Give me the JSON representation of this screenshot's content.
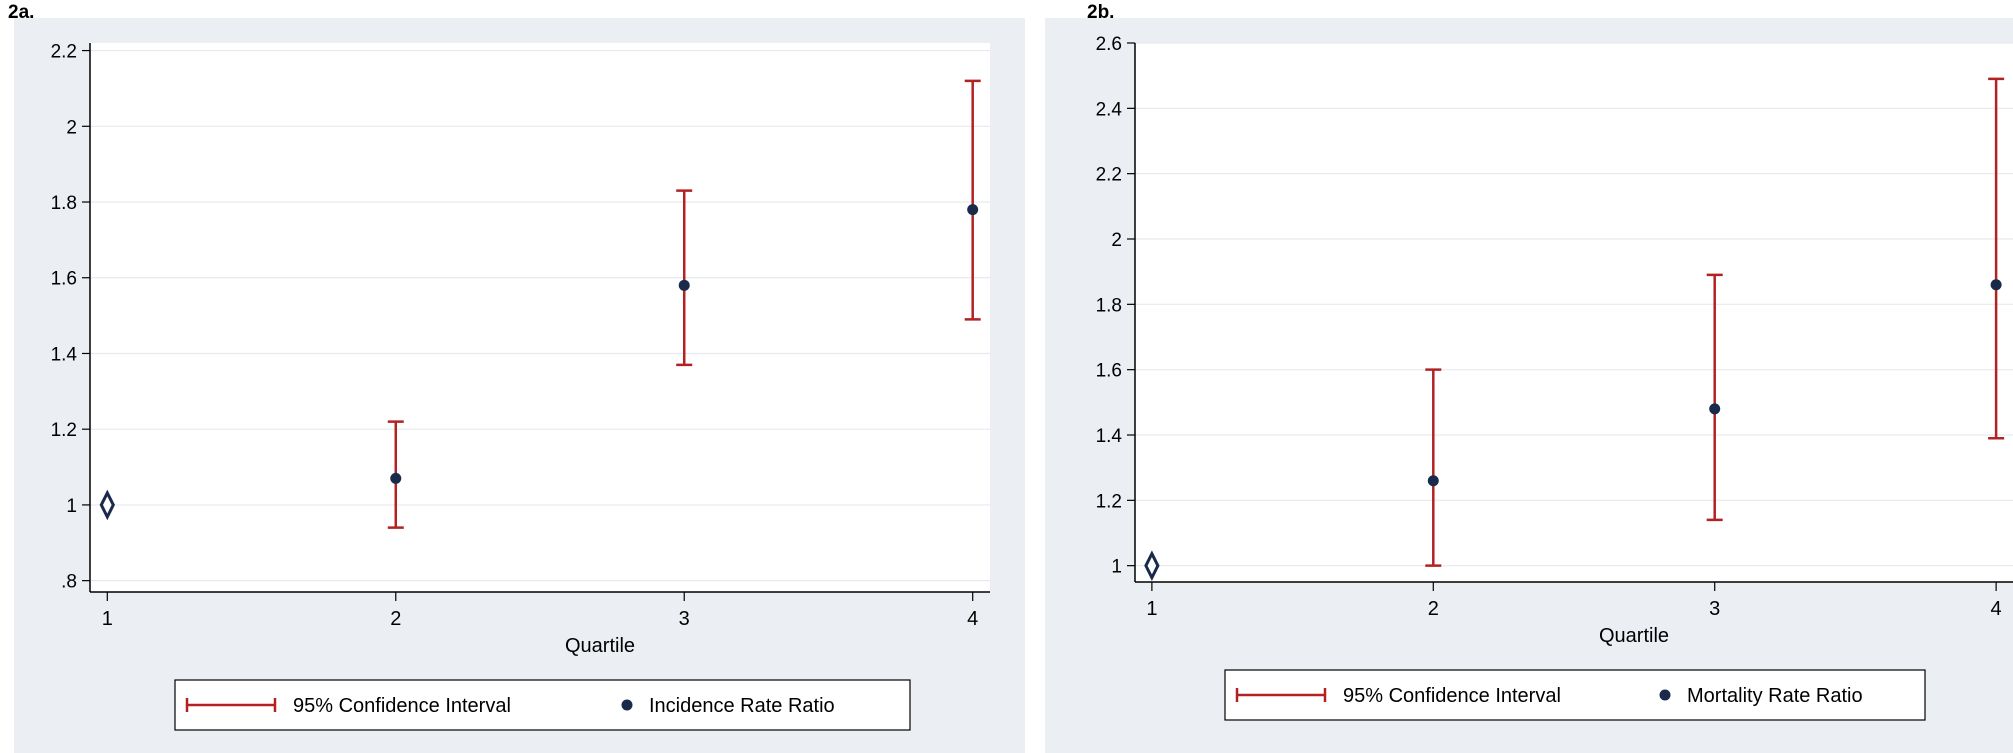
{
  "chart_data": [
    {
      "panel_label": "2a.",
      "type": "scatter",
      "xlabel": "Quartile",
      "ylabel": "",
      "x_ticks": [
        "1",
        "2",
        "3",
        "4"
      ],
      "xlim": [
        0.94,
        4.06
      ],
      "y_ticks": [
        0.8,
        1.0,
        1.2,
        1.4,
        1.6,
        1.8,
        2.0,
        2.2
      ],
      "y_tick_labels": [
        ".8",
        "1",
        "1.2",
        "1.4",
        "1.6",
        "1.8",
        "2",
        "2.2"
      ],
      "ylim": [
        0.77,
        2.22
      ],
      "grid": true,
      "reference": {
        "x": 1,
        "y": 1.0
      },
      "points": [
        {
          "x": 2,
          "y": 1.07,
          "lo": 0.94,
          "hi": 1.22
        },
        {
          "x": 3,
          "y": 1.58,
          "lo": 1.37,
          "hi": 1.83
        },
        {
          "x": 4,
          "y": 1.78,
          "lo": 1.49,
          "hi": 2.12
        }
      ],
      "legend": {
        "placement": "bottom",
        "ci_label": "95% Confidence Interval",
        "point_label": "Incidence Rate Ratio"
      },
      "colors": {
        "ci": "#b22222",
        "point": "#1a2a4a",
        "reference": "#1a2a4a",
        "band": "#ebeff3"
      }
    },
    {
      "panel_label": "2b.",
      "type": "scatter",
      "xlabel": "Quartile",
      "ylabel": "",
      "x_ticks": [
        "1",
        "2",
        "3",
        "4"
      ],
      "xlim": [
        0.94,
        4.06
      ],
      "y_ticks": [
        1.0,
        1.2,
        1.4,
        1.6,
        1.8,
        2.0,
        2.2,
        2.4,
        2.6
      ],
      "y_tick_labels": [
        "1",
        "1.2",
        "1.4",
        "1.6",
        "1.8",
        "2",
        "2.2",
        "2.4",
        "2.6"
      ],
      "ylim": [
        0.95,
        2.6
      ],
      "grid": true,
      "reference": {
        "x": 1,
        "y": 1.0
      },
      "points": [
        {
          "x": 2,
          "y": 1.26,
          "lo": 1.0,
          "hi": 1.6
        },
        {
          "x": 3,
          "y": 1.48,
          "lo": 1.14,
          "hi": 1.89
        },
        {
          "x": 4,
          "y": 1.86,
          "lo": 1.39,
          "hi": 2.49
        }
      ],
      "legend": {
        "placement": "bottom",
        "ci_label": "95% Confidence Interval",
        "point_label": "Mortality Rate Ratio"
      },
      "colors": {
        "ci": "#b22222",
        "point": "#1a2a4a",
        "reference": "#1a2a4a",
        "band": "#ebeff3"
      }
    }
  ]
}
